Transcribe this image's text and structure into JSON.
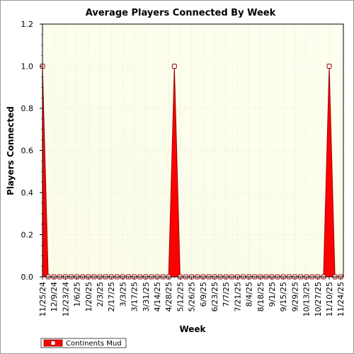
{
  "chart_data": {
    "type": "area",
    "title": "Average Players Connected By Week",
    "xlabel": "Week",
    "ylabel": "Players Connected",
    "ylim": [
      0,
      1.2
    ],
    "yticks": [
      "0.0",
      "0.2",
      "0.4",
      "0.6",
      "0.8",
      "1.0",
      "1.2"
    ],
    "grid": true,
    "legend_position": "bottom-left",
    "colors": {
      "series": "#ff0000",
      "series_dark": "#990000",
      "bg_from": "#fbfbe8",
      "bg_to": "#fffff0",
      "grid": "#c8c8c8"
    },
    "x_tick_labels": [
      "11/25/24",
      "12/9/24",
      "12/23/24",
      "1/6/25",
      "1/20/25",
      "2/3/25",
      "2/17/25",
      "3/3/25",
      "3/17/25",
      "3/31/25",
      "4/14/25",
      "4/28/25",
      "5/12/25",
      "5/26/25",
      "6/9/25",
      "6/23/25",
      "7/7/25",
      "7/21/25",
      "8/4/25",
      "8/18/25",
      "9/1/25",
      "9/15/25",
      "9/29/25",
      "10/13/25",
      "10/27/25",
      "11/10/25",
      "11/24/25"
    ],
    "series": [
      {
        "name": "Continents Mud",
        "x": [
          "11/25/24",
          "12/2/24",
          "12/9/24",
          "12/16/24",
          "12/23/24",
          "12/30/24",
          "1/6/25",
          "1/13/25",
          "1/20/25",
          "1/27/25",
          "2/3/25",
          "2/10/25",
          "2/17/25",
          "2/24/25",
          "3/3/25",
          "3/10/25",
          "3/17/25",
          "3/24/25",
          "3/31/25",
          "4/7/25",
          "4/14/25",
          "4/21/25",
          "4/28/25",
          "5/5/25",
          "5/12/25",
          "5/19/25",
          "5/26/25",
          "6/2/25",
          "6/9/25",
          "6/16/25",
          "6/23/25",
          "6/30/25",
          "7/7/25",
          "7/14/25",
          "7/21/25",
          "7/28/25",
          "8/4/25",
          "8/11/25",
          "8/18/25",
          "8/25/25",
          "9/1/25",
          "9/8/25",
          "9/15/25",
          "9/22/25",
          "9/29/25",
          "10/6/25",
          "10/13/25",
          "10/20/25",
          "10/27/25",
          "11/3/25",
          "11/10/25",
          "11/17/25",
          "11/24/25"
        ],
        "values": [
          1.0,
          0,
          0,
          0,
          0,
          0,
          0,
          0,
          0,
          0,
          0,
          0,
          0,
          0,
          0,
          0,
          0,
          0,
          0,
          0,
          0,
          0,
          0,
          1.0,
          0,
          0,
          0,
          0,
          0,
          0,
          0,
          0,
          0,
          0,
          0,
          0,
          0,
          0,
          0,
          0,
          0,
          0,
          0,
          0,
          0,
          0,
          0,
          0,
          0,
          0,
          1.0,
          0,
          0
        ]
      }
    ]
  }
}
